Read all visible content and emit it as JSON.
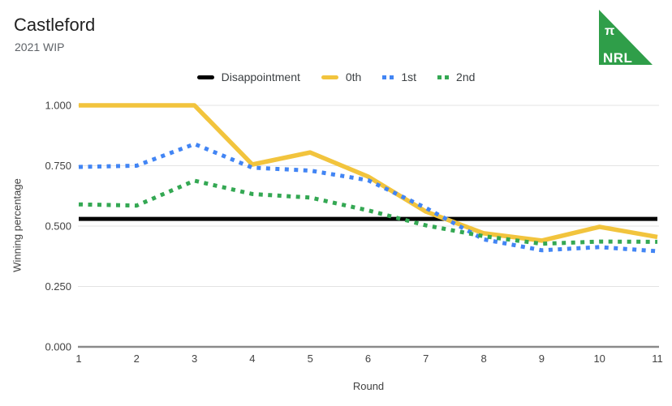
{
  "header": {
    "title": "Castleford",
    "subtitle": "2021 WIP"
  },
  "logo": {
    "pi": "π",
    "text": "NRL",
    "color": "#2F9E49"
  },
  "colors": {
    "background": "#ffffff",
    "gridline": "#e3e3e3",
    "axis_line": "#8a8a8a",
    "disappointment": "#000000",
    "series_0th": "#F2C43D",
    "series_1st": "#4285F4",
    "series_2nd": "#34A853"
  },
  "chart_data": {
    "type": "line",
    "title": "Castleford",
    "subtitle": "2021 WIP",
    "xlabel": "Round",
    "ylabel": "Winning percentage",
    "x": [
      1,
      2,
      3,
      4,
      5,
      6,
      7,
      8,
      9,
      10,
      11
    ],
    "xlim": [
      1,
      11
    ],
    "ylim": [
      0,
      1
    ],
    "y_ticks": [
      0,
      0.25,
      0.5,
      0.75,
      1.0
    ],
    "y_tick_labels": [
      "0.000",
      "0.250",
      "0.500",
      "0.750",
      "1.000"
    ],
    "grid": true,
    "legend_position": "top",
    "series": [
      {
        "name": "Disappointment",
        "color": "#000000",
        "style": "solid",
        "values": [
          0.53,
          0.53,
          0.53,
          0.53,
          0.53,
          0.53,
          0.53,
          0.53,
          0.53,
          0.53,
          0.53
        ]
      },
      {
        "name": "0th",
        "color": "#F2C43D",
        "style": "solid",
        "values": [
          1.0,
          1.0,
          1.0,
          0.755,
          0.805,
          0.705,
          0.56,
          0.47,
          0.44,
          0.497,
          0.455
        ]
      },
      {
        "name": "1st",
        "color": "#4285F4",
        "style": "dotted",
        "values": [
          0.745,
          0.75,
          0.84,
          0.742,
          0.73,
          0.69,
          0.575,
          0.445,
          0.4,
          0.413,
          0.396
        ]
      },
      {
        "name": "2nd",
        "color": "#34A853",
        "style": "dotted",
        "values": [
          0.59,
          0.585,
          0.688,
          0.633,
          0.618,
          0.565,
          0.503,
          0.458,
          0.427,
          0.436,
          0.435
        ]
      }
    ]
  }
}
